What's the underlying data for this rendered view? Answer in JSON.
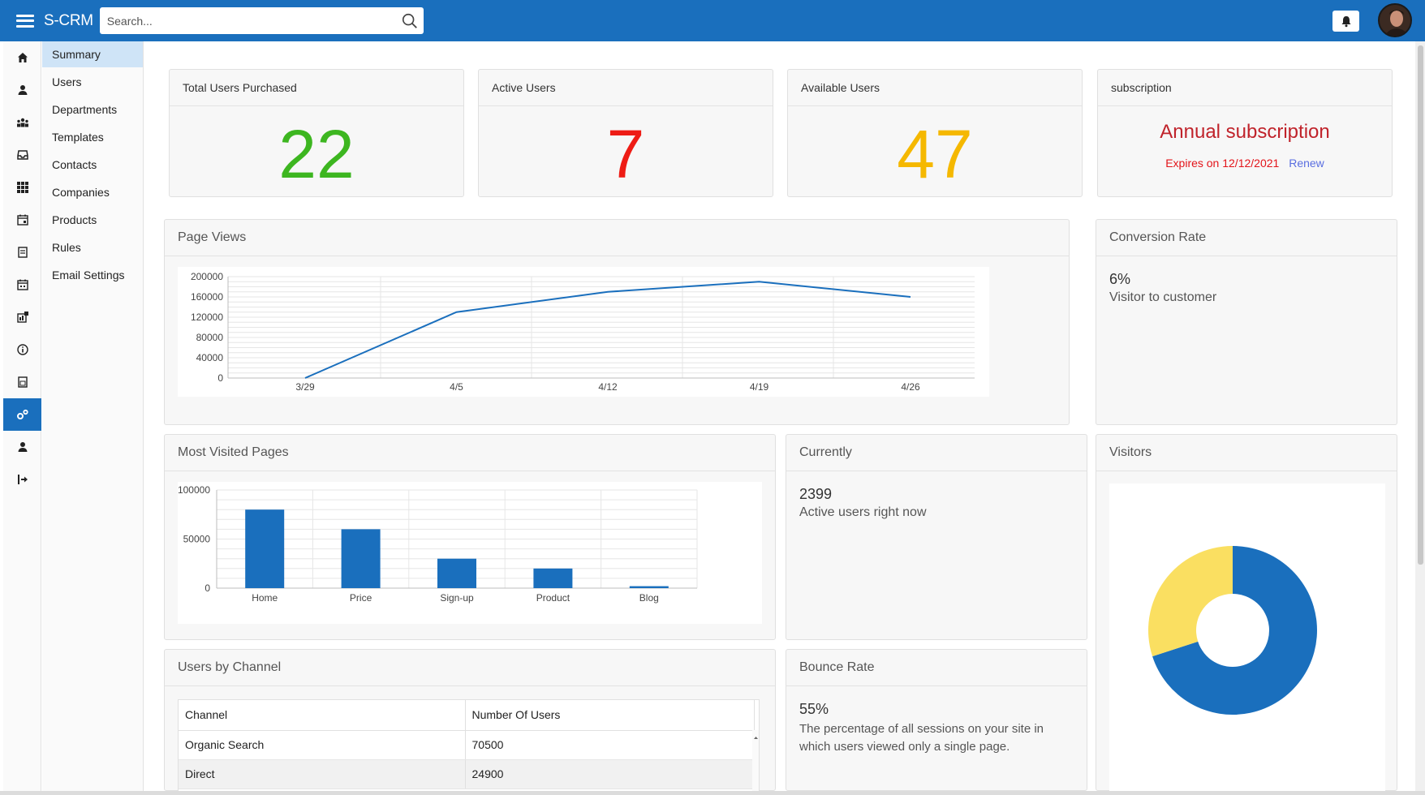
{
  "topbar": {
    "brand": "S-CRM",
    "search_placeholder": "Search..."
  },
  "icon_rail": [
    {
      "icon": "home-icon"
    },
    {
      "icon": "user-icon"
    },
    {
      "icon": "team-icon"
    },
    {
      "icon": "inbox-icon"
    },
    {
      "icon": "grid-icon"
    },
    {
      "icon": "calendar-check-icon"
    },
    {
      "icon": "document-list-icon"
    },
    {
      "icon": "calendar-icon"
    },
    {
      "icon": "chart-board-icon"
    },
    {
      "icon": "info-icon"
    },
    {
      "icon": "report-icon"
    },
    {
      "icon": "settings-gears-icon",
      "active": true
    },
    {
      "icon": "profile-icon"
    },
    {
      "icon": "logout-icon"
    }
  ],
  "subnav": {
    "items": [
      "Summary",
      "Users",
      "Departments",
      "Templates",
      "Contacts",
      "Companies",
      "Products",
      "Rules",
      "Email Settings"
    ],
    "active": "Summary"
  },
  "stats": {
    "total_users": {
      "label": "Total Users Purchased",
      "value": "22",
      "color": "#3db620"
    },
    "active_users": {
      "label": "Active Users",
      "value": "7",
      "color": "#ee1c15"
    },
    "available_users": {
      "label": "Available Users",
      "value": "47",
      "color": "#f5b800"
    },
    "subscription": {
      "label": "subscription",
      "plan": "Annual subscription",
      "expires": "Expires on 12/12/2021",
      "renew": "Renew"
    }
  },
  "page_views": {
    "title": "Page Views",
    "chart_data": {
      "type": "line",
      "categories": [
        "3/29",
        "4/5",
        "4/12",
        "4/19",
        "4/26"
      ],
      "values": [
        0,
        130000,
        170000,
        190000,
        160000
      ],
      "yticks": [
        "200000",
        "160000",
        "120000",
        "80000",
        "40000",
        "0"
      ],
      "ylim": [
        0,
        200000
      ],
      "color": "#1a6fbd",
      "grid": true
    }
  },
  "conversion": {
    "title": "Conversion Rate",
    "value": "6%",
    "caption": "Visitor to customer"
  },
  "most_visited": {
    "title": "Most Visited Pages",
    "chart_data": {
      "type": "bar",
      "categories": [
        "Home",
        "Price",
        "Sign-up",
        "Product",
        "Blog"
      ],
      "values": [
        80000,
        60000,
        30000,
        20000,
        2000
      ],
      "yticks": [
        "100000",
        "50000",
        "0"
      ],
      "ylim": [
        0,
        100000
      ],
      "color": "#1a6fbd",
      "grid": true
    }
  },
  "currently": {
    "title": "Currently",
    "value": "2399",
    "caption": "Active users right now"
  },
  "visitors": {
    "title": "Visitors",
    "chart_data": {
      "type": "pie",
      "donut": true,
      "values": [
        70,
        30
      ],
      "colors": [
        "#1a6fbd",
        "#fadf61"
      ]
    }
  },
  "users_by_channel": {
    "title": "Users by Channel",
    "columns": [
      "Channel",
      "Number Of Users"
    ],
    "rows": [
      [
        "Organic Search",
        "70500"
      ],
      [
        "Direct",
        "24900"
      ]
    ]
  },
  "bounce": {
    "title": "Bounce Rate",
    "value": "55%",
    "caption": "The percentage of all sessions on your site in which users viewed only a single page."
  }
}
